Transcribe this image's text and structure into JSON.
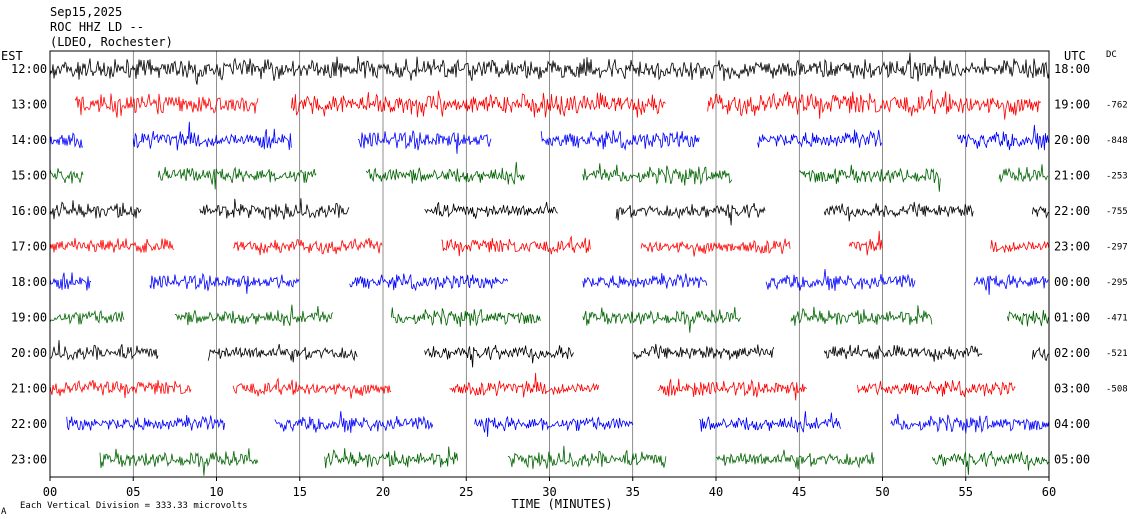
{
  "header": {
    "date": "Sep15,2025",
    "station": "ROC HHZ LD --",
    "network": "(LDEO, Rochester)"
  },
  "left_axis_title": "EST",
  "right_axis_title": "UTC",
  "dc_title": "DC",
  "footer": {
    "corner_mark": "A",
    "scale_note": "Each Vertical Division =  333.33 microvolts"
  },
  "colors": {
    "black": "#000000",
    "red": "#ff0000",
    "blue": "#0000ff",
    "green": "#006400"
  },
  "chart_data": {
    "type": "line",
    "xlabel": "TIME (MINUTES)",
    "xlim": [
      0,
      60
    ],
    "x_ticks": [
      "00",
      "05",
      "10",
      "15",
      "20",
      "25",
      "30",
      "35",
      "40",
      "45",
      "50",
      "55",
      "60"
    ],
    "traces": [
      {
        "est": "12:00",
        "utc": "18:00",
        "dc": "",
        "color": "black",
        "segments": [
          [
            0,
            60
          ]
        ],
        "amplitude": 0.4
      },
      {
        "est": "13:00",
        "utc": "19:00",
        "dc": "-762",
        "color": "red",
        "segments": [
          [
            1.5,
            12.5
          ],
          [
            14.5,
            37
          ],
          [
            39.5,
            59.5
          ]
        ],
        "amplitude": 0.45
      },
      {
        "est": "14:00",
        "utc": "20:00",
        "dc": "-848",
        "color": "blue",
        "segments": [
          [
            0,
            2
          ],
          [
            5,
            14.5
          ],
          [
            18.5,
            26.5
          ],
          [
            29.5,
            39
          ],
          [
            42.5,
            50
          ],
          [
            54.5,
            60
          ]
        ],
        "amplitude": 0.35
      },
      {
        "est": "15:00",
        "utc": "21:00",
        "dc": "-253",
        "color": "green",
        "segments": [
          [
            0,
            2
          ],
          [
            6.5,
            16
          ],
          [
            19,
            28.5
          ],
          [
            32,
            41
          ],
          [
            45,
            53.5
          ],
          [
            57,
            60
          ]
        ],
        "amplitude": 0.32
      },
      {
        "est": "16:00",
        "utc": "22:00",
        "dc": "-755",
        "color": "black",
        "segments": [
          [
            0,
            5.5
          ],
          [
            9,
            18
          ],
          [
            22.5,
            30.5
          ],
          [
            34,
            43
          ],
          [
            46.5,
            55.5
          ],
          [
            59,
            60
          ]
        ],
        "amplitude": 0.3
      },
      {
        "est": "17:00",
        "utc": "23:00",
        "dc": "-297",
        "color": "red",
        "segments": [
          [
            0,
            7.5
          ],
          [
            11,
            20
          ],
          [
            23.5,
            32.5
          ],
          [
            35.5,
            44.5
          ],
          [
            48,
            50
          ],
          [
            56.5,
            60
          ]
        ],
        "amplitude": 0.3
      },
      {
        "est": "18:00",
        "utc": "00:00",
        "dc": "-295",
        "color": "blue",
        "segments": [
          [
            0,
            2.5
          ],
          [
            6,
            15
          ],
          [
            18,
            27.5
          ],
          [
            32,
            39.5
          ],
          [
            43,
            52
          ],
          [
            55.5,
            60
          ]
        ],
        "amplitude": 0.3
      },
      {
        "est": "19:00",
        "utc": "01:00",
        "dc": "-471",
        "color": "green",
        "segments": [
          [
            0,
            4.5
          ],
          [
            7.5,
            17
          ],
          [
            20.5,
            29.5
          ],
          [
            32,
            41.5
          ],
          [
            44.5,
            53
          ],
          [
            57.5,
            60
          ]
        ],
        "amplitude": 0.3
      },
      {
        "est": "20:00",
        "utc": "02:00",
        "dc": "-521",
        "color": "black",
        "segments": [
          [
            0,
            6.5
          ],
          [
            9.5,
            18.5
          ],
          [
            22.5,
            31.5
          ],
          [
            35,
            43.5
          ],
          [
            46.5,
            56
          ],
          [
            59,
            60
          ]
        ],
        "amplitude": 0.3
      },
      {
        "est": "21:00",
        "utc": "03:00",
        "dc": "-508",
        "color": "red",
        "segments": [
          [
            0,
            8.5
          ],
          [
            11,
            20.5
          ],
          [
            24,
            33
          ],
          [
            36.5,
            45.5
          ],
          [
            48.5,
            58
          ]
        ],
        "amplitude": 0.3
      },
      {
        "est": "22:00",
        "utc": "04:00",
        "dc": "",
        "color": "blue",
        "segments": [
          [
            1,
            10.5
          ],
          [
            13.5,
            23
          ],
          [
            25.5,
            35
          ],
          [
            39,
            47.5
          ],
          [
            50.5,
            60
          ]
        ],
        "amplitude": 0.3
      },
      {
        "est": "23:00",
        "utc": "05:00",
        "dc": "",
        "color": "green",
        "segments": [
          [
            3,
            12.5
          ],
          [
            16.5,
            24.5
          ],
          [
            27.5,
            37
          ],
          [
            40,
            49.5
          ],
          [
            53,
            60
          ]
        ],
        "amplitude": 0.32
      }
    ]
  }
}
